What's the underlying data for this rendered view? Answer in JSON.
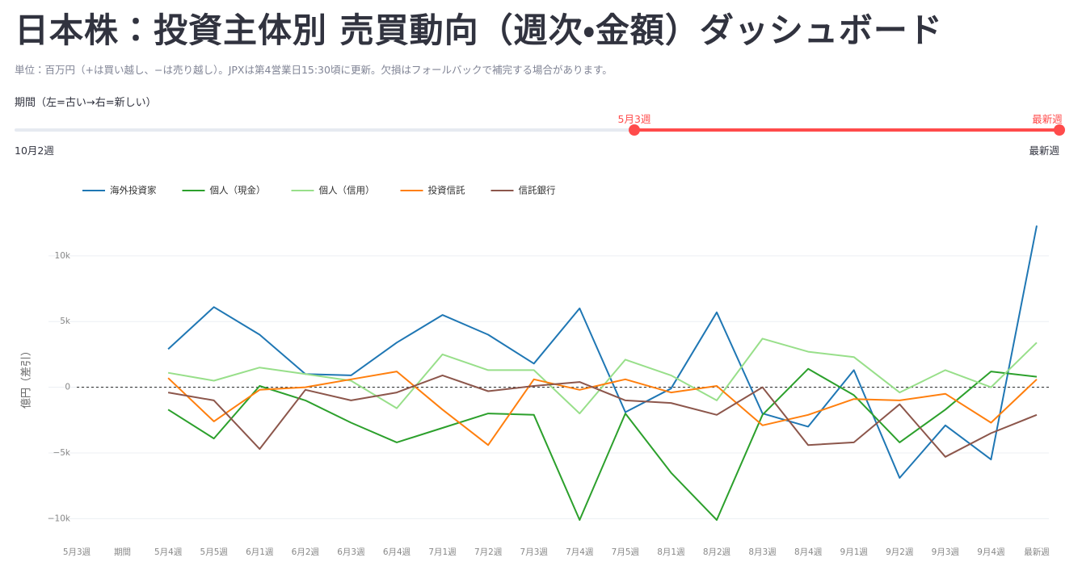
{
  "header": {
    "title": "日本株：投資主体別 売買動向（週次・金額）ダッシュボード",
    "caption": "単位：百万円（+は買い越し、−は売り越し）。JPXは第4営業日15:30頃に更新。欠損はフォールバックで補完する場合があります。"
  },
  "slider": {
    "label": "期間（左=古い→右=新しい）",
    "selected": [
      "5月3週",
      "最新週"
    ],
    "min_label": "10月2週",
    "max_label": "最新週"
  },
  "chart_data": {
    "type": "line",
    "y_label": "億円（差引）",
    "categories": [
      "5月3週",
      "期間",
      "5月4週",
      "5月5週",
      "6月1週",
      "6月2週",
      "6月3週",
      "6月4週",
      "7月1週",
      "7月2週",
      "7月3週",
      "7月4週",
      "7月5週",
      "8月1週",
      "8月2週",
      "8月3週",
      "8月4週",
      "9月1週",
      "9月2週",
      "9月3週",
      "9月4週",
      "最新週"
    ],
    "series": [
      {
        "name": "海外投資家",
        "color": "#1f77b4",
        "values": [
          null,
          null,
          2900,
          6100,
          4000,
          1000,
          900,
          3400,
          5500,
          4000,
          1800,
          6000,
          -1900,
          -100,
          5700,
          -2000,
          -3000,
          1300,
          -6900,
          -2900,
          -5500,
          12300
        ]
      },
      {
        "name": "個人（現金）",
        "color": "#2ca02c",
        "values": [
          null,
          null,
          -1700,
          -3900,
          100,
          -1000,
          -2700,
          -4200,
          -3100,
          -2000,
          -2100,
          -10100,
          -2000,
          -6500,
          -10100,
          -2100,
          1400,
          -600,
          -4200,
          -1700,
          1200,
          800
        ]
      },
      {
        "name": "個人（信用）",
        "color": "#98df8a",
        "values": [
          null,
          null,
          1100,
          500,
          1500,
          1000,
          500,
          -1600,
          2500,
          1300,
          1300,
          -2000,
          2100,
          900,
          -1000,
          3700,
          2700,
          2300,
          -400,
          1300,
          0,
          3400
        ]
      },
      {
        "name": "投資信託",
        "color": "#ff7f0e",
        "values": [
          null,
          null,
          700,
          -2600,
          -200,
          0,
          600,
          1200,
          -1700,
          -4400,
          600,
          -200,
          600,
          -400,
          100,
          -2900,
          -2100,
          -900,
          -1000,
          -500,
          -2700,
          600
        ]
      },
      {
        "name": "信託銀行",
        "color": "#8c564b",
        "values": [
          null,
          null,
          -400,
          -1000,
          -4700,
          -200,
          -1000,
          -400,
          900,
          -300,
          100,
          400,
          -1000,
          -1200,
          -2100,
          0,
          -4400,
          -4200,
          -1300,
          -5300,
          -3500,
          -2100
        ]
      }
    ],
    "ylim": [
      -11700,
      13800
    ],
    "yticks": [
      {
        "value": -10000,
        "label": "−10k"
      },
      {
        "value": -5000,
        "label": "−5k"
      },
      0,
      {
        "value": 5000,
        "label": "5k"
      },
      {
        "value": 10000,
        "label": "10k"
      }
    ],
    "grid": true,
    "zero_line": true,
    "legend": "top"
  }
}
